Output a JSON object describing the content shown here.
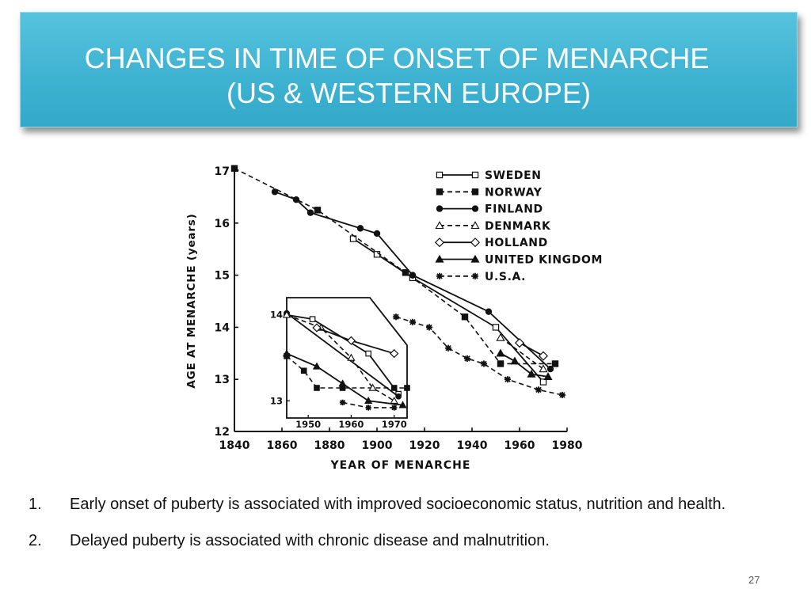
{
  "slide": {
    "title_line1": "CHANGES IN TIME OF ONSET OF MENARCHE",
    "title_line2": "(US & WESTERN EUROPE)",
    "page_number": "27",
    "notes": [
      {
        "num": "1.",
        "text": "Early onset of puberty is associated with improved socioeconomic status, nutrition and health."
      },
      {
        "num": "2.",
        "text": "Delayed puberty is associated with chronic disease and malnutrition."
      }
    ]
  },
  "chart_data": [
    {
      "type": "line",
      "xlabel": "YEAR OF MENARCHE",
      "ylabel": "AGE AT MENARCHE (years)",
      "xlim": [
        1840,
        1980
      ],
      "ylim": [
        12,
        17
      ],
      "x_ticks": [
        1840,
        1860,
        1880,
        1900,
        1920,
        1940,
        1960,
        1980
      ],
      "y_ticks": [
        12,
        13,
        14,
        15,
        16,
        17
      ],
      "legend_position": "top-right",
      "series": [
        {
          "name": "SWEDEN",
          "style": "solid",
          "marker": "open-square",
          "points": [
            [
              1890,
              15.7
            ],
            [
              1900,
              15.4
            ],
            [
              1915,
              14.95
            ],
            [
              1950,
              14.0
            ],
            [
              1970,
              12.95
            ]
          ]
        },
        {
          "name": "NORWAY",
          "style": "dashed",
          "marker": "filled-square",
          "points": [
            [
              1840,
              17.05
            ],
            [
              1875,
              16.25
            ],
            [
              1912,
              15.05
            ],
            [
              1937,
              14.2
            ],
            [
              1952,
              13.3
            ],
            [
              1975,
              13.3
            ]
          ]
        },
        {
          "name": "FINLAND",
          "style": "solid",
          "marker": "filled-circle",
          "points": [
            [
              1857,
              16.6
            ],
            [
              1866,
              16.45
            ],
            [
              1872,
              16.2
            ],
            [
              1893,
              15.9
            ],
            [
              1900,
              15.8
            ],
            [
              1915,
              15.0
            ],
            [
              1947,
              14.3
            ],
            [
              1973,
              13.2
            ]
          ]
        },
        {
          "name": "DENMARK",
          "style": "dashed",
          "marker": "open-triangle",
          "points": [
            [
              1952,
              13.8
            ],
            [
              1970,
              13.2
            ]
          ]
        },
        {
          "name": "HOLLAND",
          "style": "solid",
          "marker": "open-diamond",
          "points": [
            [
              1960,
              13.7
            ],
            [
              1970,
              13.45
            ]
          ]
        },
        {
          "name": "UNITED KINGDOM",
          "style": "solid",
          "marker": "filled-triangle",
          "points": [
            [
              1952,
              13.5
            ],
            [
              1958,
              13.35
            ],
            [
              1965,
              13.1
            ],
            [
              1972,
              13.05
            ]
          ]
        },
        {
          "name": "U.S.A.",
          "style": "dashed",
          "marker": "asterisk",
          "points": [
            [
              1908,
              14.2
            ],
            [
              1915,
              14.1
            ],
            [
              1922,
              14.0
            ],
            [
              1930,
              13.6
            ],
            [
              1938,
              13.4
            ],
            [
              1945,
              13.3
            ],
            [
              1955,
              13.0
            ],
            [
              1968,
              12.8
            ],
            [
              1978,
              12.7
            ]
          ]
        }
      ]
    },
    {
      "type": "line",
      "xlim": [
        1945,
        1973
      ],
      "ylim": [
        12.8,
        14.2
      ],
      "x_ticks": [
        1950,
        1960,
        1970
      ],
      "y_ticks": [
        13,
        14
      ],
      "series": [
        {
          "name": "SWEDEN",
          "style": "solid",
          "marker": "open-square",
          "points": [
            [
              1945,
              14.0
            ],
            [
              1951,
              13.95
            ],
            [
              1964,
              13.55
            ],
            [
              1971,
              13.08
            ]
          ]
        },
        {
          "name": "NORWAY",
          "style": "dashed",
          "marker": "filled-square",
          "points": [
            [
              1945,
              13.52
            ],
            [
              1949,
              13.35
            ],
            [
              1952,
              13.15
            ],
            [
              1958,
              13.15
            ],
            [
              1970,
              13.15
            ],
            [
              1973,
              13.15
            ]
          ]
        },
        {
          "name": "FINLAND",
          "style": "solid",
          "marker": "filled-circle",
          "points": [
            [
              1945,
              14.02
            ],
            [
              1971,
              13.05
            ]
          ]
        },
        {
          "name": "DENMARK",
          "style": "dashed",
          "marker": "open-triangle",
          "points": [
            [
              1945,
              14.0
            ],
            [
              1953,
              13.85
            ],
            [
              1960,
              13.5
            ],
            [
              1965,
              13.15
            ],
            [
              1970,
              13.0
            ]
          ]
        },
        {
          "name": "HOLLAND",
          "style": "solid",
          "marker": "open-diamond",
          "points": [
            [
              1952,
              13.85
            ],
            [
              1960,
              13.7
            ],
            [
              1970,
              13.55
            ]
          ]
        },
        {
          "name": "UNITED KINGDOM",
          "style": "solid",
          "marker": "filled-triangle",
          "points": [
            [
              1945,
              13.55
            ],
            [
              1952,
              13.4
            ],
            [
              1958,
              13.2
            ],
            [
              1964,
              13.0
            ],
            [
              1972,
              12.95
            ]
          ]
        },
        {
          "name": "U.S.A.",
          "style": "dashed",
          "marker": "asterisk",
          "points": [
            [
              1958,
              12.98
            ],
            [
              1964,
              12.92
            ],
            [
              1970,
              12.92
            ]
          ]
        }
      ]
    }
  ]
}
